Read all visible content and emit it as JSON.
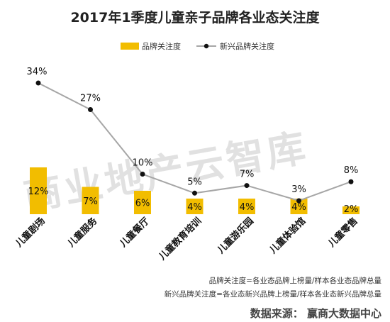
{
  "chart_data": {
    "type": "bar+line",
    "title": "2017年1季度儿童亲子品牌各业态关注度",
    "categories": [
      "儿童剧场",
      "儿童服务",
      "儿童餐厅",
      "儿童教育培训",
      "儿童游乐园",
      "儿童体验馆",
      "儿童零售"
    ],
    "series": [
      {
        "name": "品牌关注度",
        "type": "bar",
        "color": "#f2bd00",
        "values": [
          12,
          7,
          6,
          4,
          4,
          4,
          2
        ],
        "labels": [
          "12%",
          "7%",
          "6%",
          "4%",
          "4%",
          "4%",
          "2%"
        ]
      },
      {
        "name": "新兴品牌关注度",
        "type": "line",
        "color": "#a6a6a6",
        "marker_color": "#111111",
        "values": [
          34,
          27,
          10,
          5,
          7,
          3,
          8
        ],
        "labels": [
          "34%",
          "27%",
          "10%",
          "5%",
          "7%",
          "3%",
          "8%"
        ]
      }
    ],
    "ylim": [
      0,
      36
    ],
    "grid": false,
    "legend_position": "top-center"
  },
  "legend": {
    "bar_label": "品牌关注度",
    "line_label": "新兴品牌关注度"
  },
  "watermark": "商业地产云智库",
  "notes": [
    "品牌关注度=各业态品牌上榜量/样本各业态品牌总量",
    "新兴品牌关注度=各业态新兴品牌上榜量/样本各业态新兴品牌总量"
  ],
  "source": "数据来源： 赢商大数据中心"
}
